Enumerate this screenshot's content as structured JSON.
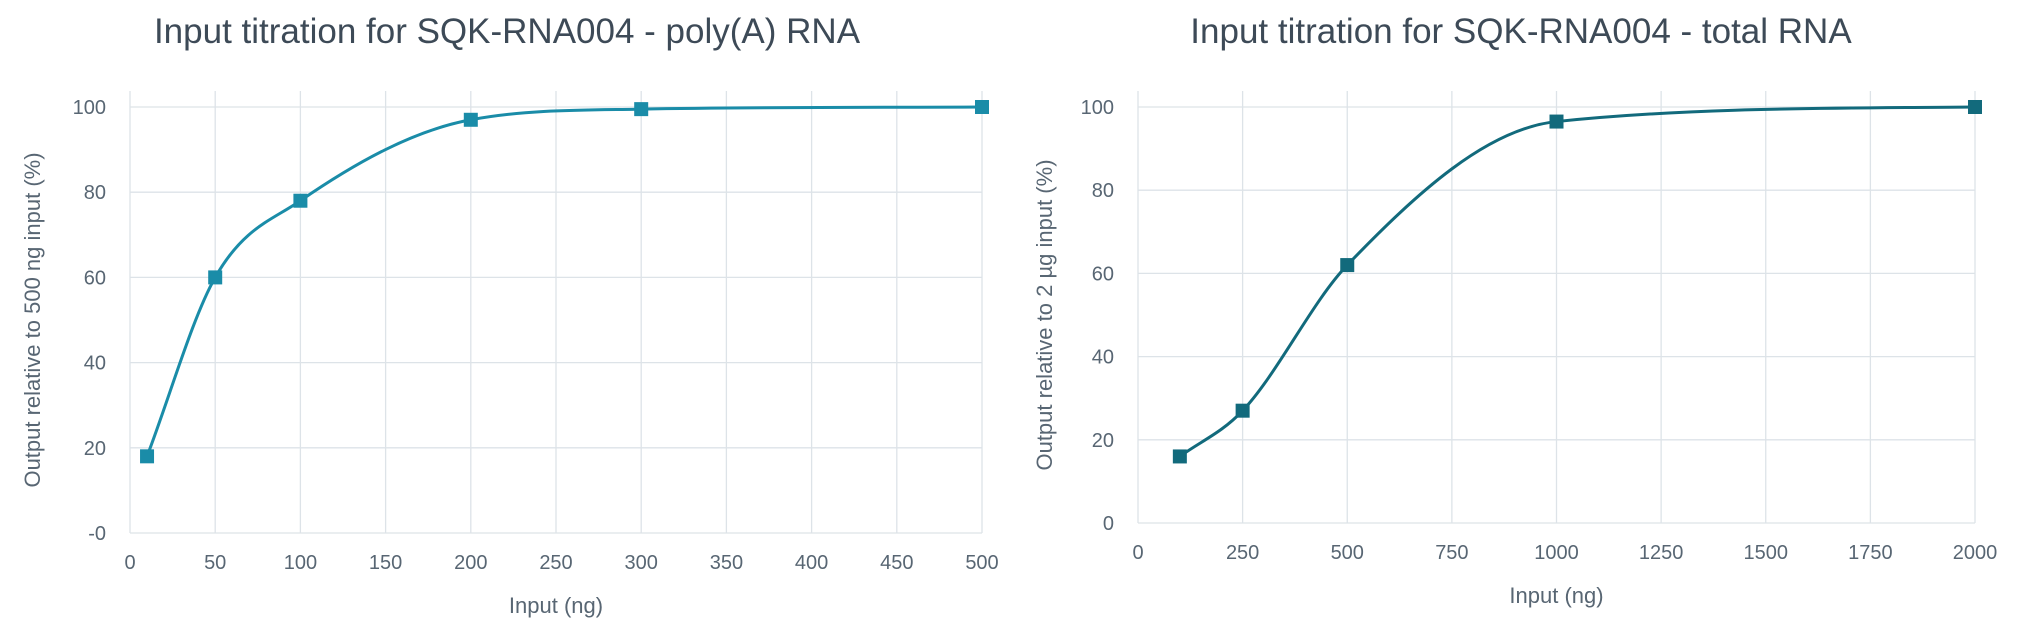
{
  "chart_data": [
    {
      "type": "line",
      "title": "Input titration for SQK-RNA004 - poly(A) RNA",
      "xlabel": "Input (ng)",
      "ylabel": "Output relative to 500 ng input (%)",
      "xlim": [
        0,
        500
      ],
      "ylim": [
        0,
        100
      ],
      "x_ticks": [
        0,
        50,
        100,
        150,
        200,
        250,
        300,
        350,
        400,
        450,
        500
      ],
      "x_tick_labels": [
        "0",
        "50",
        "100",
        "150",
        "200",
        "250",
        "300",
        "350",
        "400",
        "450",
        "500"
      ],
      "y_ticks": [
        0,
        20,
        40,
        60,
        80,
        100
      ],
      "y_tick_labels": [
        "-0",
        "20",
        "40",
        "60",
        "80",
        "100"
      ],
      "grid": true,
      "legend": "none",
      "color": "#1a8ca8",
      "series": [
        {
          "x": [
            10,
            50,
            100,
            200,
            300,
            500
          ],
          "y": [
            18,
            60,
            78,
            97,
            99.5,
            100
          ]
        }
      ]
    },
    {
      "type": "line",
      "title": "Input titration for SQK-RNA004 - total RNA",
      "xlabel": "Input (ng)",
      "ylabel": "Output relative to 2 µg input (%)",
      "xlim": [
        0,
        2000
      ],
      "ylim": [
        0,
        100
      ],
      "x_ticks": [
        0,
        250,
        500,
        750,
        1000,
        1250,
        1500,
        1750,
        2000
      ],
      "x_tick_labels": [
        "0",
        "250",
        "500",
        "750",
        "1000",
        "1250",
        "1500",
        "1750",
        "2000"
      ],
      "y_ticks": [
        0,
        20,
        40,
        60,
        80,
        100
      ],
      "y_tick_labels": [
        "0",
        "20",
        "40",
        "60",
        "80",
        "100"
      ],
      "grid": true,
      "legend": "none",
      "color": "#126a7c",
      "series": [
        {
          "x": [
            100,
            250,
            500,
            1000,
            2000
          ],
          "y": [
            16,
            27,
            62,
            96.5,
            100
          ]
        }
      ]
    }
  ]
}
